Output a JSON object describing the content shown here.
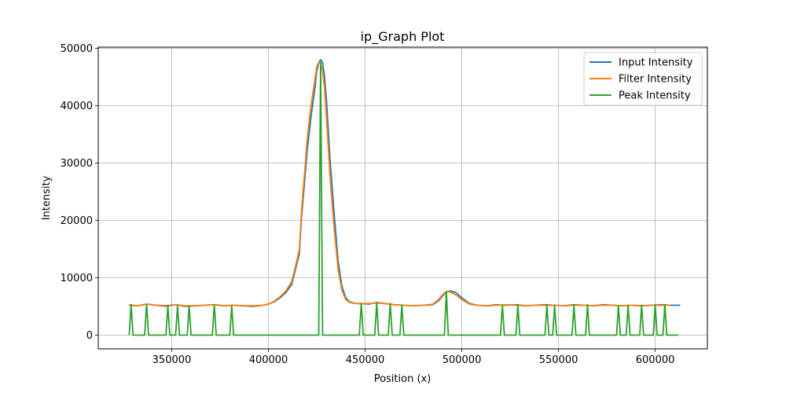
{
  "chart_data": {
    "type": "line",
    "title": "ip_Graph Plot",
    "xlabel": "Position (x)",
    "ylabel": "Intensity",
    "xlim": [
      312000,
      627000
    ],
    "ylim": [
      -2400,
      50200
    ],
    "xticks": [
      350000,
      400000,
      450000,
      500000,
      550000,
      600000
    ],
    "xtick_labels": [
      "350000",
      "400000",
      "450000",
      "500000",
      "550000",
      "600000"
    ],
    "yticks": [
      0,
      10000,
      20000,
      30000,
      40000,
      50000
    ],
    "ytick_labels": [
      "0",
      "10000",
      "20000",
      "30000",
      "40000",
      "50000"
    ],
    "grid": true,
    "legend_position": "top-right",
    "series": [
      {
        "name": "Input Intensity",
        "color": "#1f77b4",
        "x": [
          328000,
          332000,
          337000,
          342000,
          347000,
          352000,
          357000,
          362000,
          367000,
          372000,
          377000,
          382000,
          387000,
          392000,
          397000,
          400000,
          403000,
          406000,
          409000,
          412000,
          414000,
          416000,
          417000,
          418000,
          419000,
          420000,
          422000,
          424000,
          425000,
          426000,
          427000,
          428000,
          429000,
          430000,
          432000,
          434000,
          436000,
          438000,
          440000,
          442000,
          445000,
          448000,
          452000,
          456000,
          460000,
          465000,
          470000,
          475000,
          480000,
          485000,
          488000,
          490000,
          492000,
          494000,
          497000,
          500000,
          504000,
          508000,
          513000,
          518000,
          523000,
          528000,
          533000,
          538000,
          543000,
          548000,
          553000,
          558000,
          563000,
          568000,
          573000,
          578000,
          583000,
          588000,
          593000,
          598000,
          603000,
          608000,
          613000
        ],
        "values": [
          5200,
          5100,
          5400,
          5200,
          5100,
          5300,
          5000,
          5100,
          5200,
          5300,
          5100,
          5200,
          5100,
          5000,
          5200,
          5400,
          5800,
          6500,
          7400,
          8800,
          11500,
          14200,
          20000,
          24000,
          28000,
          32000,
          38000,
          43000,
          46000,
          47500,
          48000,
          47500,
          45000,
          41000,
          30000,
          21000,
          13000,
          8500,
          6500,
          5800,
          5500,
          5500,
          5400,
          5700,
          5500,
          5300,
          5200,
          5100,
          5200,
          5300,
          6000,
          6800,
          7500,
          7700,
          7400,
          6500,
          5500,
          5200,
          5100,
          5300,
          5200,
          5300,
          5100,
          5200,
          5300,
          5200,
          5100,
          5300,
          5200,
          5100,
          5300,
          5200,
          5100,
          5200,
          5100,
          5200,
          5300,
          5200,
          5200
        ]
      },
      {
        "name": "Filter Intensity",
        "color": "#ff7f0e",
        "x": [
          328000,
          332000,
          337000,
          342000,
          347000,
          352000,
          357000,
          362000,
          367000,
          372000,
          377000,
          382000,
          387000,
          392000,
          397000,
          400000,
          403000,
          406000,
          409000,
          412000,
          414000,
          416000,
          417000,
          418000,
          419000,
          420000,
          422000,
          424000,
          425000,
          426000,
          427000,
          428000,
          429000,
          430000,
          432000,
          434000,
          436000,
          438000,
          440000,
          442000,
          445000,
          448000,
          452000,
          456000,
          460000,
          465000,
          470000,
          475000,
          480000,
          485000,
          488000,
          490000,
          492000,
          494000,
          497000,
          500000,
          504000,
          508000,
          513000,
          518000,
          523000,
          528000,
          533000,
          538000,
          543000,
          548000,
          553000,
          558000,
          563000,
          568000,
          573000,
          578000,
          583000,
          588000,
          593000,
          598000,
          603000,
          608000
        ],
        "values": [
          5300,
          5100,
          5400,
          5200,
          5000,
          5300,
          5100,
          5100,
          5200,
          5300,
          5100,
          5200,
          5100,
          5100,
          5200,
          5400,
          5900,
          6700,
          7700,
          9300,
          12000,
          15000,
          21000,
          25500,
          29500,
          34000,
          40000,
          44500,
          46800,
          47500,
          47300,
          46000,
          43000,
          38000,
          27000,
          18500,
          11500,
          7800,
          6200,
          5700,
          5500,
          5500,
          5500,
          5600,
          5500,
          5300,
          5200,
          5100,
          5200,
          5400,
          6200,
          7000,
          7600,
          7500,
          7000,
          6200,
          5400,
          5200,
          5100,
          5200,
          5300,
          5200,
          5100,
          5200,
          5200,
          5200,
          5100,
          5200,
          5200,
          5100,
          5200,
          5200,
          5100,
          5200,
          5100,
          5200,
          5200,
          5200
        ]
      },
      {
        "name": "Peak Intensity",
        "color": "#2ca02c",
        "x": [
          328000,
          329000,
          330000,
          336000,
          337000,
          338000,
          347000,
          348000,
          349000,
          352000,
          353000,
          354000,
          358000,
          359000,
          360000,
          371000,
          372000,
          373000,
          380000,
          381000,
          382000,
          426000,
          427000,
          428000,
          447000,
          448000,
          449000,
          455000,
          456000,
          457000,
          462000,
          463000,
          464000,
          468000,
          469000,
          470000,
          491000,
          492000,
          493000,
          520000,
          521000,
          522000,
          528000,
          529000,
          530000,
          543000,
          544000,
          545000,
          547000,
          548000,
          549000,
          557000,
          558000,
          559000,
          564000,
          565000,
          566000,
          580000,
          581000,
          582000,
          585000,
          586000,
          587000,
          592000,
          593000,
          594000,
          599000,
          600000,
          601000,
          604000,
          605000,
          606000,
          612000
        ],
        "values": [
          0,
          5300,
          0,
          0,
          5400,
          0,
          0,
          5100,
          0,
          0,
          5200,
          0,
          0,
          5100,
          0,
          0,
          5300,
          0,
          0,
          5100,
          0,
          0,
          47500,
          0,
          0,
          5500,
          0,
          0,
          5600,
          0,
          0,
          5500,
          0,
          0,
          5200,
          0,
          0,
          7600,
          0,
          0,
          5200,
          0,
          0,
          5300,
          0,
          0,
          5200,
          0,
          0,
          5200,
          0,
          0,
          5200,
          0,
          0,
          5300,
          0,
          0,
          5100,
          0,
          0,
          5200,
          0,
          0,
          5200,
          0,
          0,
          5300,
          0,
          0,
          5300,
          0,
          0
        ]
      }
    ]
  }
}
